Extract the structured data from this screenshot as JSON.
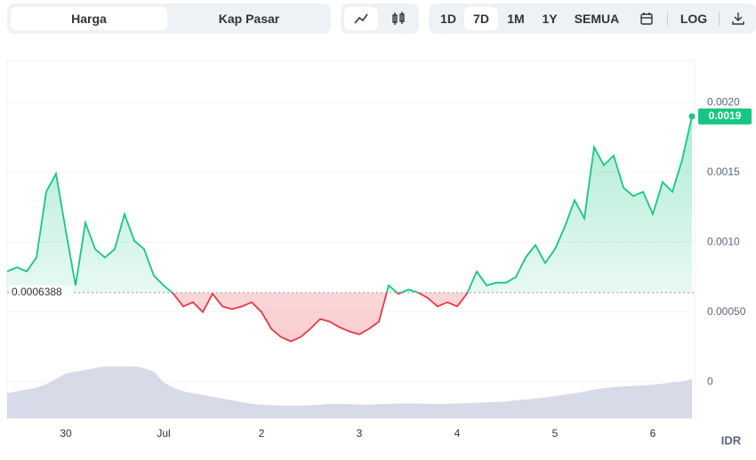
{
  "toolbar": {
    "tabs": [
      "Harga",
      "Kap Pasar"
    ],
    "ranges": [
      "1D",
      "7D",
      "1M",
      "1Y",
      "SEMUA"
    ],
    "scale": "LOG"
  },
  "chart_data": {
    "type": "line",
    "categories": [
      null,
      null,
      null,
      null,
      null,
      null,
      "30",
      null,
      null,
      null,
      null,
      null,
      null,
      null,
      null,
      null,
      "Jul",
      null,
      null,
      null,
      null,
      null,
      null,
      null,
      null,
      null,
      "2",
      null,
      null,
      null,
      null,
      null,
      null,
      null,
      null,
      null,
      "3",
      null,
      null,
      null,
      null,
      null,
      null,
      null,
      null,
      null,
      "4",
      null,
      null,
      null,
      null,
      null,
      null,
      null,
      null,
      null,
      "5",
      null,
      null,
      null,
      null,
      null,
      null,
      null,
      null,
      null,
      "6",
      null,
      null,
      null,
      null
    ],
    "series": [
      {
        "name": "Harga",
        "color": "#16c784",
        "below_color": "#ea3943",
        "values": [
          0.00079,
          0.00082,
          0.00079,
          0.00089,
          0.00136,
          0.00149,
          0.00108,
          0.00069,
          0.00114,
          0.00095,
          0.00089,
          0.00095,
          0.0012,
          0.00101,
          0.00095,
          0.00076,
          0.00069,
          0.00063,
          0.00054,
          0.00057,
          0.0005,
          0.00063,
          0.00054,
          0.00052,
          0.00054,
          0.00057,
          0.0005,
          0.00038,
          0.00032,
          0.00029,
          0.00032,
          0.00038,
          0.00045,
          0.00043,
          0.00039,
          0.00036,
          0.00034,
          0.00038,
          0.00043,
          0.00069,
          0.00063,
          0.00066,
          0.00064,
          0.0006,
          0.00054,
          0.00057,
          0.00054,
          0.00063,
          0.00079,
          0.00069,
          0.00071,
          0.00071,
          0.00075,
          0.00089,
          0.00098,
          0.00085,
          0.00095,
          0.00111,
          0.0013,
          0.00117,
          0.00168,
          0.00155,
          0.00162,
          0.00139,
          0.00133,
          0.00136,
          0.0012,
          0.00143,
          0.00136,
          0.00159,
          0.0019
        ],
        "last_label": "0.0019"
      },
      {
        "name": "Volume",
        "color": "#c9cedf",
        "axis": "y2",
        "values": [
          7,
          7.5,
          8,
          8.5,
          9.5,
          11,
          12.5,
          13,
          13.5,
          14,
          14.5,
          14.5,
          14.5,
          14.5,
          14,
          13,
          10,
          8.5,
          7.5,
          7,
          6.5,
          6,
          5.5,
          5,
          4.5,
          4,
          3.8,
          3.6,
          3.5,
          3.5,
          3.5,
          3.6,
          3.8,
          4,
          4,
          3.9,
          3.8,
          3.8,
          3.9,
          4,
          4.1,
          4.1,
          4.1,
          4,
          4,
          4,
          4.1,
          4.2,
          4.3,
          4.4,
          4.5,
          4.7,
          5,
          5.2,
          5.5,
          5.8,
          6.2,
          6.6,
          7,
          7.4,
          8,
          8.4,
          8.7,
          8.9,
          9,
          9.2,
          9.4,
          9.6,
          10,
          10.2,
          11
        ]
      }
    ],
    "baseline": 0.0006388,
    "ylim": [
      -0.00026,
      0.0023
    ],
    "yticks": [
      0,
      {
        "value": 0.0005,
        "label": "0.00050"
      },
      {
        "value": 0.001,
        "label": "0.0010"
      },
      0.0015,
      {
        "value": 0.002,
        "label": "0.0020"
      }
    ],
    "y2lim": [
      0,
      100
    ],
    "currency": "IDR",
    "grid": true
  }
}
